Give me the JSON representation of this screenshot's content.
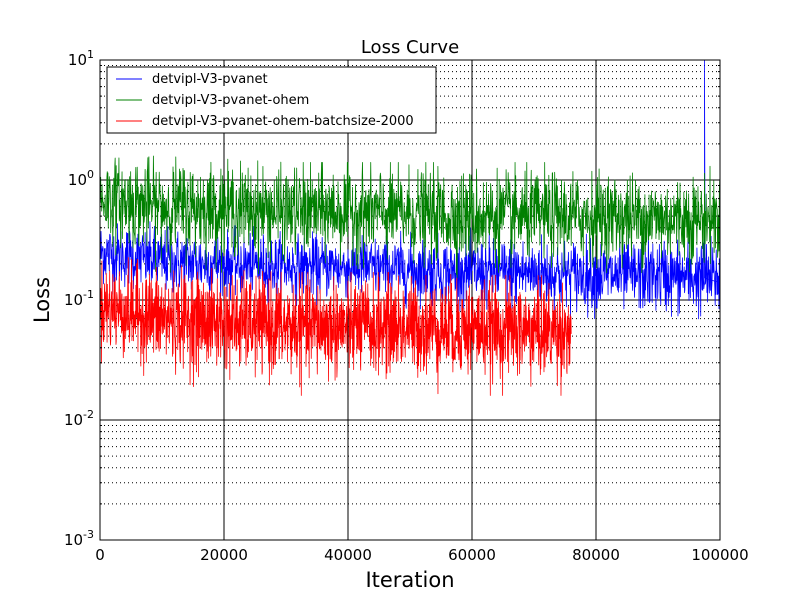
{
  "chart_data": {
    "type": "line",
    "title": "Loss Curve",
    "xlabel": "Iteration",
    "ylabel": "Loss",
    "xlim": [
      0,
      100000
    ],
    "ylim": [
      0.001,
      10
    ],
    "yscale": "log",
    "grid": true,
    "legend_position": "top-left",
    "x_ticks": [
      "0",
      "20000",
      "40000",
      "60000",
      "80000",
      "100000"
    ],
    "y_ticks": [
      {
        "base": "10",
        "exp": "-3"
      },
      {
        "base": "10",
        "exp": "-2"
      },
      {
        "base": "10",
        "exp": "-1"
      },
      {
        "base": "10",
        "exp": "0"
      },
      {
        "base": "10",
        "exp": "1"
      }
    ],
    "series": [
      {
        "name": "detvipl-V3-pvanet",
        "color": "#0000ff",
        "x_end": 100000,
        "noise": true,
        "x": [
          0,
          10000,
          20000,
          30000,
          40000,
          50000,
          60000,
          70000,
          80000,
          90000,
          100000
        ],
        "center": [
          0.25,
          0.21,
          0.2,
          0.19,
          0.19,
          0.18,
          0.17,
          0.17,
          0.16,
          0.16,
          0.15
        ],
        "low": [
          0.1,
          0.09,
          0.09,
          0.09,
          0.09,
          0.085,
          0.08,
          0.07,
          0.07,
          0.06,
          0.055
        ],
        "high": [
          0.45,
          0.45,
          0.42,
          0.4,
          0.4,
          0.4,
          0.4,
          0.42,
          0.38,
          0.36,
          0.35
        ],
        "spike": {
          "x": 97500,
          "y": 10
        }
      },
      {
        "name": "detvipl-V3-pvanet-ohem",
        "color": "#008000",
        "x_end": 100000,
        "noise": true,
        "x": [
          0,
          10000,
          20000,
          30000,
          40000,
          50000,
          60000,
          70000,
          80000,
          90000,
          100000
        ],
        "center": [
          0.7,
          0.6,
          0.58,
          0.55,
          0.55,
          0.52,
          0.5,
          0.5,
          0.5,
          0.48,
          0.48
        ],
        "low": [
          0.2,
          0.17,
          0.17,
          0.16,
          0.16,
          0.16,
          0.15,
          0.16,
          0.17,
          0.16,
          0.16
        ],
        "high": [
          1.5,
          1.6,
          1.5,
          1.4,
          1.4,
          1.4,
          1.4,
          1.4,
          1.4,
          1.3,
          1.3
        ]
      },
      {
        "name": "detvipl-V3-pvanet-ohem-batchsize-2000",
        "color": "#ff0000",
        "x_end": 76000,
        "noise": true,
        "x": [
          0,
          10000,
          20000,
          30000,
          40000,
          50000,
          60000,
          70000,
          76000
        ],
        "center": [
          0.09,
          0.07,
          0.065,
          0.06,
          0.06,
          0.06,
          0.058,
          0.055,
          0.055
        ],
        "low": [
          0.03,
          0.02,
          0.018,
          0.016,
          0.016,
          0.017,
          0.016,
          0.016,
          0.016
        ],
        "high": [
          0.25,
          0.2,
          0.18,
          0.17,
          0.17,
          0.17,
          0.16,
          0.16,
          0.16
        ]
      }
    ]
  }
}
